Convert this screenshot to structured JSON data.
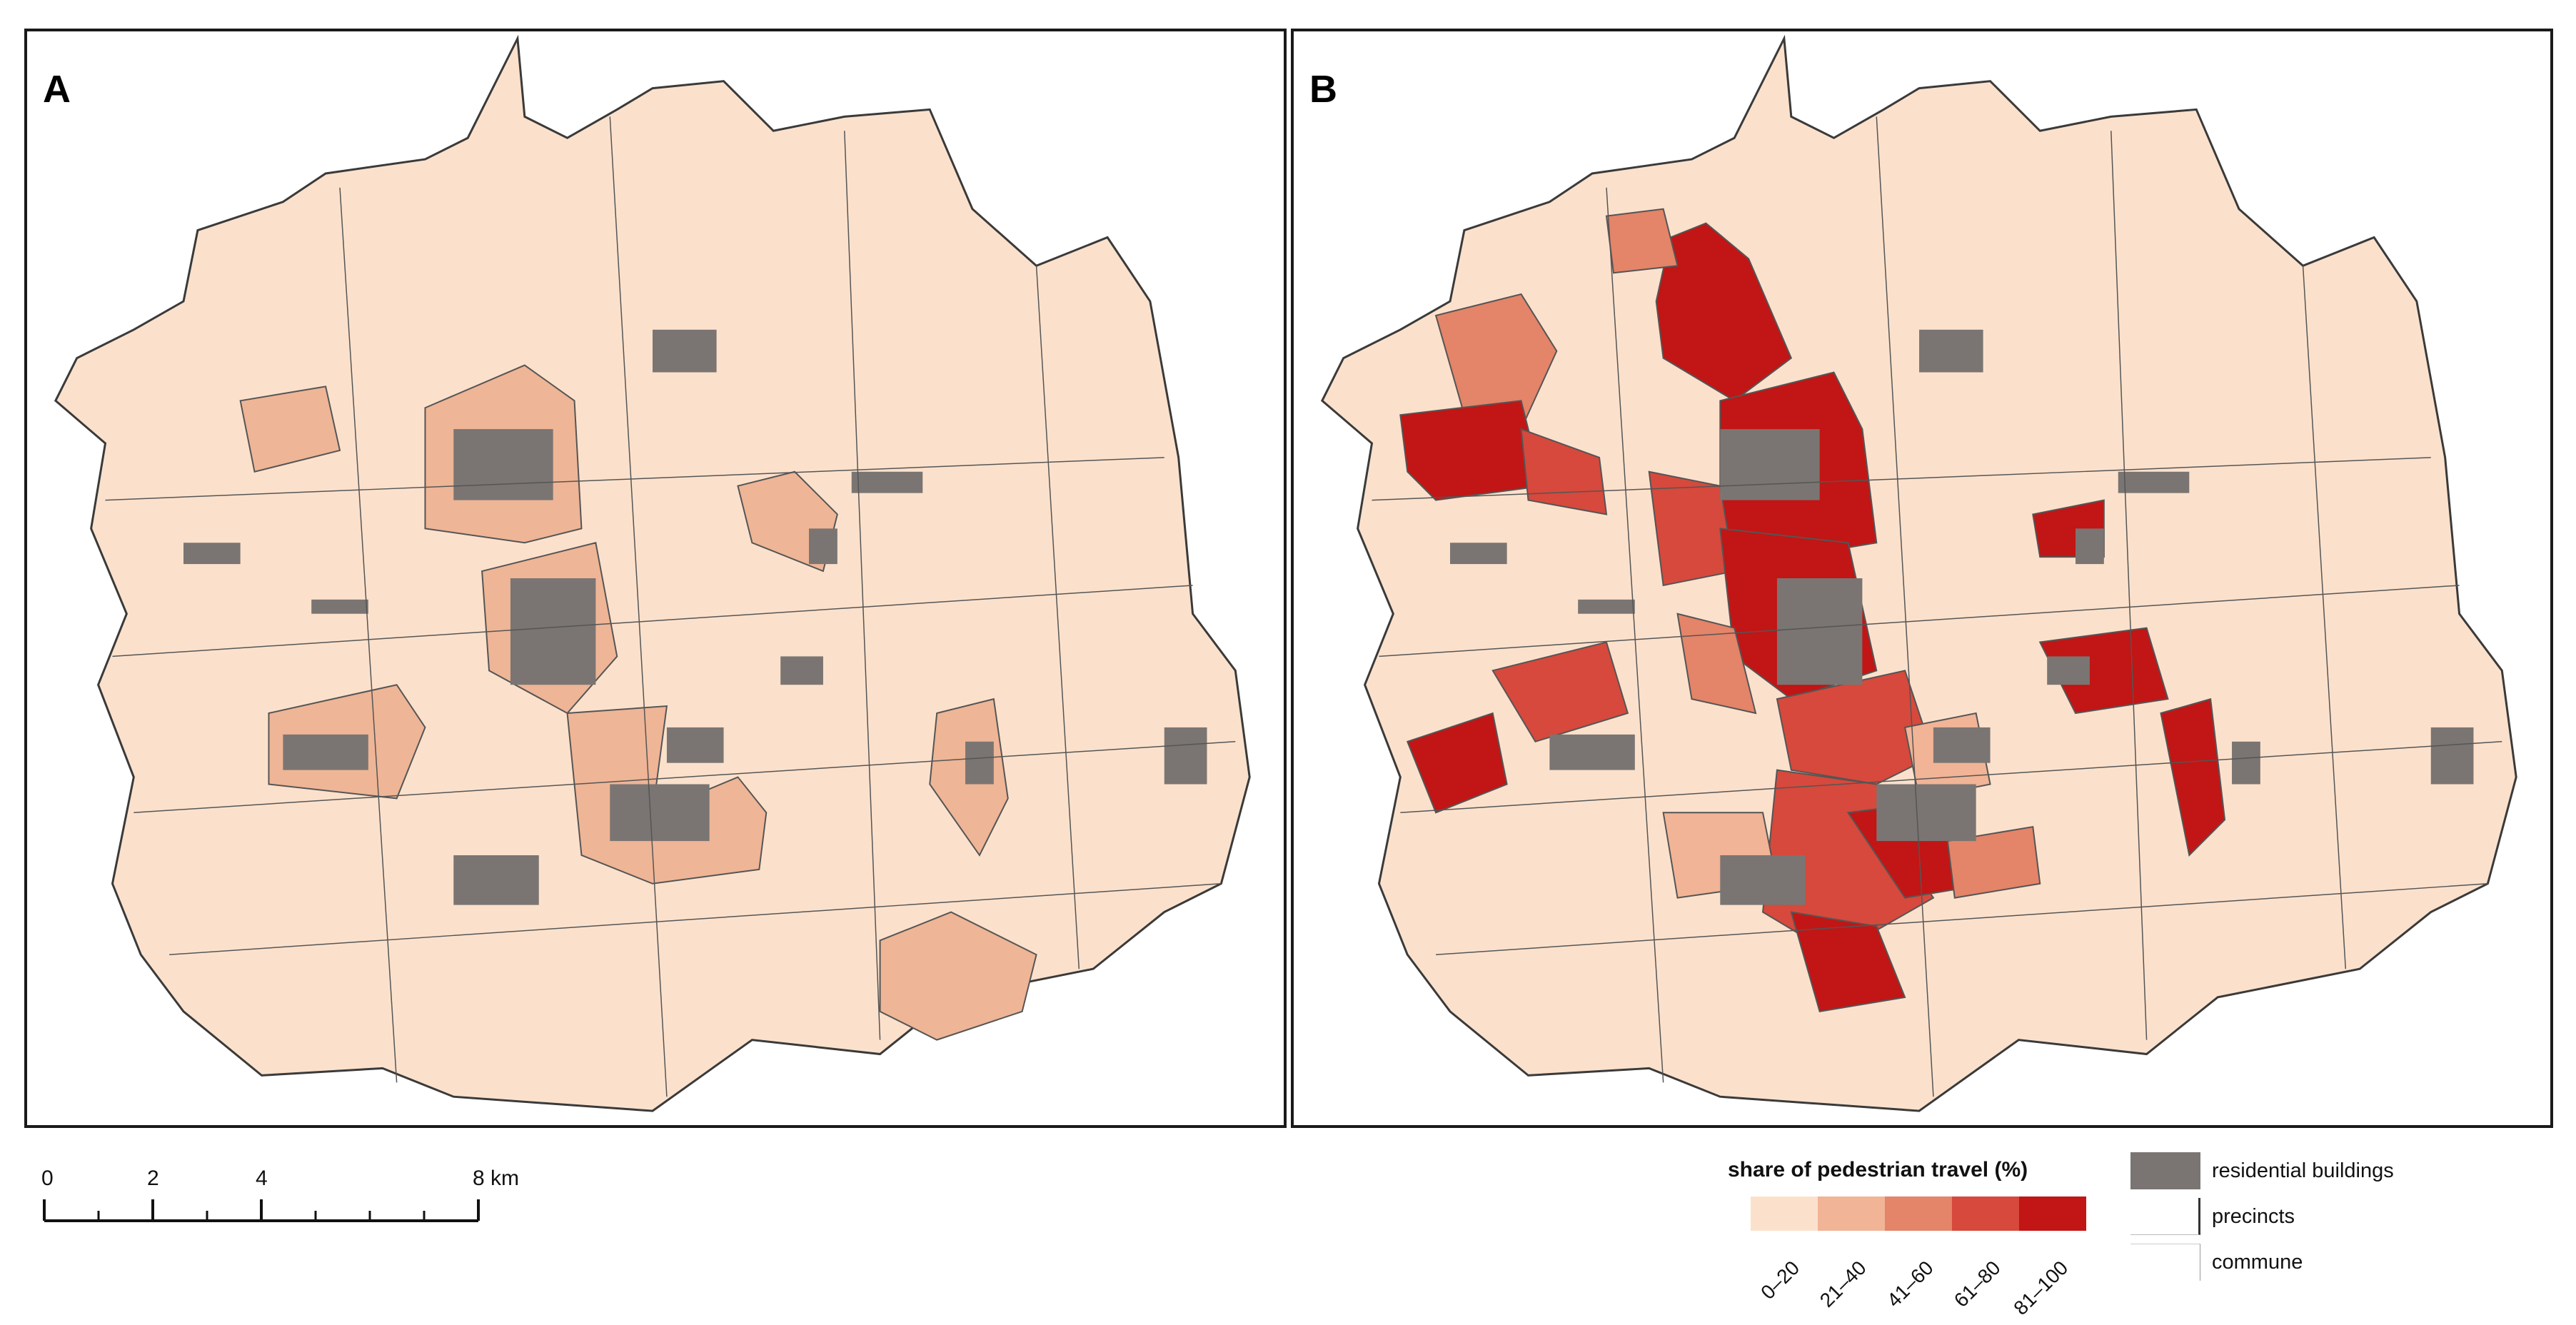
{
  "panels": [
    {
      "label": "A"
    },
    {
      "label": "B"
    }
  ],
  "scale_bar": {
    "ticks": [
      "0",
      "2",
      "4",
      "8 km"
    ]
  },
  "legend": {
    "title": "share of pedestrian travel (%)",
    "classes": [
      {
        "label": "0–20",
        "color": "#fbe1cc"
      },
      {
        "label": "21–40",
        "color": "#f1b496"
      },
      {
        "label": "41–60",
        "color": "#e48468"
      },
      {
        "label": "61–80",
        "color": "#d6493c"
      },
      {
        "label": "81–100",
        "color": "#c21515"
      }
    ],
    "items": [
      {
        "label": "residential buildings",
        "color": "#7a7572"
      },
      {
        "label": "precincts"
      },
      {
        "label": "commune"
      }
    ]
  },
  "map_colors": {
    "base": "#fbe1cc",
    "buildings": "#7a7572",
    "boundary": "#4a4a4a"
  }
}
